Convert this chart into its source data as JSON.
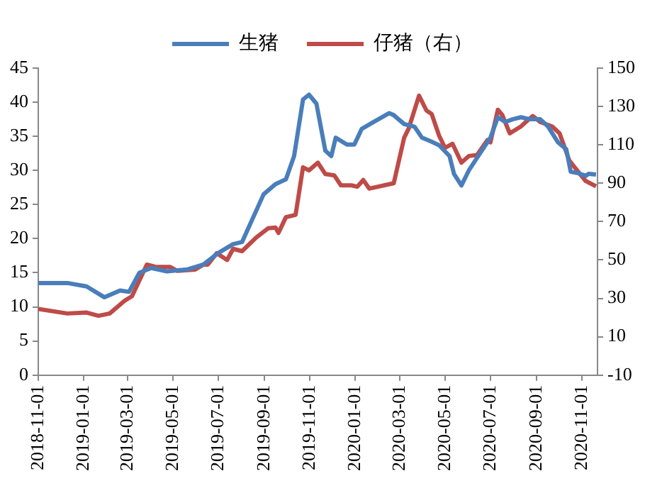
{
  "chart_data": {
    "type": "line",
    "legend": "top",
    "grid": false,
    "marker": "none",
    "line_style": "solid",
    "xlim": [
      "2018-11-01",
      "2020-11-22"
    ],
    "xticks": [
      "2018-11-01",
      "2019-01-01",
      "2019-03-01",
      "2019-05-01",
      "2019-07-01",
      "2019-09-01",
      "2019-11-01",
      "2020-01-01",
      "2020-03-01",
      "2020-05-01",
      "2020-07-01",
      "2020-09-01",
      "2020-11-01"
    ],
    "ylim": [
      0,
      45
    ],
    "yticks": [
      0,
      5,
      10,
      15,
      20,
      25,
      30,
      35,
      40,
      45
    ],
    "y2lim": [
      -10,
      150
    ],
    "y2ticks": [
      -10,
      10,
      30,
      50,
      70,
      90,
      110,
      130,
      150
    ],
    "series": [
      {
        "name": "生猪",
        "color": "#4a7ebb",
        "x": [
          "2018-11-01",
          "2018-12-10",
          "2019-01-05",
          "2019-01-29",
          "2019-02-19",
          "2019-03-03",
          "2019-03-17",
          "2019-04-02",
          "2019-04-23",
          "2019-05-21",
          "2019-06-11",
          "2019-07-01",
          "2019-07-21",
          "2019-08-02",
          "2019-08-31",
          "2019-09-16",
          "2019-09-30",
          "2019-10-11",
          "2019-10-23",
          "2019-10-31",
          "2019-11-10",
          "2019-11-22",
          "2019-11-30",
          "2019-12-06",
          "2019-12-21",
          "2019-12-31",
          "2020-01-10",
          "2020-01-26",
          "2020-02-16",
          "2020-02-22",
          "2020-03-07",
          "2020-03-21",
          "2020-03-31",
          "2020-04-13",
          "2020-04-23",
          "2020-05-07",
          "2020-05-13",
          "2020-05-23",
          "2020-06-02",
          "2020-06-17",
          "2020-07-01",
          "2020-07-11",
          "2020-07-21",
          "2020-07-31",
          "2020-08-11",
          "2020-08-23",
          "2020-09-06",
          "2020-09-16",
          "2020-09-30",
          "2020-10-11",
          "2020-10-17",
          "2020-10-27",
          "2020-11-06",
          "2020-11-10",
          "2020-11-20"
        ],
        "values": [
          13.5,
          13.5,
          13.0,
          11.4,
          12.4,
          12.2,
          15.0,
          15.7,
          15.2,
          15.5,
          16.2,
          17.9,
          19.2,
          19.5,
          26.5,
          28.0,
          28.7,
          32.1,
          40.4,
          41.1,
          39.8,
          32.9,
          32.1,
          34.8,
          33.8,
          33.8,
          36.1,
          37.1,
          38.4,
          38.1,
          36.8,
          36.4,
          34.8,
          34.2,
          33.7,
          32.1,
          29.5,
          27.8,
          30.0,
          32.5,
          34.8,
          37.8,
          37.1,
          37.5,
          37.8,
          37.5,
          37.5,
          36.5,
          34.1,
          33.1,
          29.8,
          29.6,
          29.2,
          29.5,
          29.4
        ]
      },
      {
        "name": "仔猪（右）",
        "color": "#be4b48",
        "axis": "y2",
        "x": [
          "2018-11-01",
          "2018-12-10",
          "2019-01-05",
          "2019-01-21",
          "2019-02-05",
          "2019-02-25",
          "2019-03-07",
          "2019-03-27",
          "2019-04-07",
          "2019-04-27",
          "2019-05-07",
          "2019-05-31",
          "2019-06-11",
          "2019-06-17",
          "2019-06-29",
          "2019-07-13",
          "2019-07-21",
          "2019-08-02",
          "2019-08-21",
          "2019-09-06",
          "2019-09-16",
          "2019-09-20",
          "2019-09-30",
          "2019-10-13",
          "2019-10-23",
          "2019-10-31",
          "2019-11-12",
          "2019-11-22",
          "2019-12-04",
          "2019-12-13",
          "2019-12-27",
          "2020-01-04",
          "2020-01-12",
          "2020-01-20",
          "2020-02-22",
          "2020-03-07",
          "2020-03-13",
          "2020-03-27",
          "2020-04-06",
          "2020-04-13",
          "2020-04-23",
          "2020-05-01",
          "2020-05-11",
          "2020-05-23",
          "2020-06-02",
          "2020-06-13",
          "2020-06-27",
          "2020-07-01",
          "2020-07-11",
          "2020-07-17",
          "2020-07-27",
          "2020-08-11",
          "2020-08-21",
          "2020-08-27",
          "2020-09-06",
          "2020-09-22",
          "2020-10-02",
          "2020-10-15",
          "2020-10-27",
          "2020-11-06",
          "2020-11-20"
        ],
        "values": [
          24.5,
          22.1,
          22.6,
          20.9,
          22.1,
          28.7,
          31.1,
          47.6,
          46.5,
          46.4,
          44.3,
          45.0,
          47.6,
          47.6,
          53.5,
          50.0,
          55.8,
          54.6,
          61.7,
          66.5,
          66.9,
          64.1,
          72.3,
          73.5,
          98.3,
          96.7,
          100.7,
          94.8,
          94.1,
          88.9,
          88.9,
          88.2,
          91.7,
          87.2,
          90.0,
          113.7,
          118.4,
          135.6,
          127.9,
          126.1,
          114.8,
          108.4,
          110.6,
          100.7,
          104.2,
          104.7,
          112.5,
          111.3,
          128.3,
          125.5,
          116.0,
          119.6,
          123.1,
          125.0,
          121.9,
          119.6,
          116.0,
          101.9,
          96.0,
          91.2,
          88.4
        ]
      }
    ]
  }
}
